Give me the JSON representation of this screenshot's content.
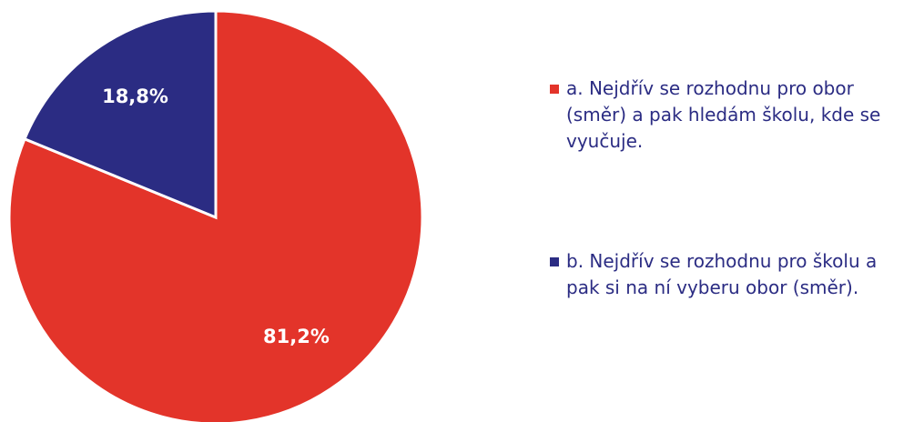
{
  "chart_data": {
    "type": "pie",
    "categories": [
      "a. Nejdřív se rozhodnu pro obor (směr) a pak hledám školu, kde se vyučuje.",
      "b. Nejdřív se rozhodnu pro školu a pak si na ní vyberu obor (směr)."
    ],
    "values": [
      81.2,
      18.8
    ],
    "value_labels": [
      "81,2%",
      "18,8%"
    ],
    "colors": [
      "#e3342a",
      "#2b2c83"
    ]
  }
}
